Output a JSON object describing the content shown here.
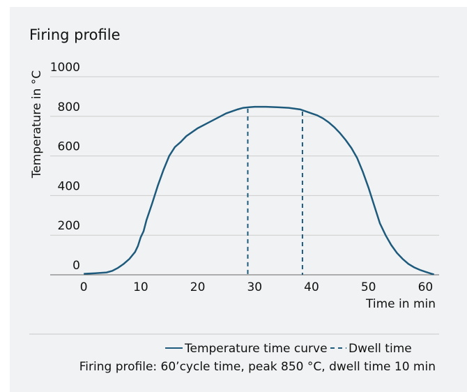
{
  "chart_data": {
    "type": "line",
    "title": "Firing profile",
    "x_label": "Time in min",
    "y_label": "Temperature in °C",
    "caption": "Firing profile: 60’cycle time, peak 850 °C, dwell time 10 min",
    "xlim": [
      -5.9,
      62.4
    ],
    "ylim": [
      0,
      1000
    ],
    "xticks": [
      0,
      10,
      20,
      30,
      40,
      50,
      60
    ],
    "yticks": [
      0,
      200,
      400,
      600,
      800,
      1000
    ],
    "grid": true,
    "series": [
      {
        "name": "Temperature time curve",
        "color": "#1d5a7c",
        "x": [
          0,
          2,
          4,
          5,
          6,
          7,
          8,
          9,
          9.5,
          10,
          10.5,
          11,
          12,
          13,
          14,
          15,
          16,
          17,
          18,
          20,
          22,
          24,
          25,
          26,
          27,
          28,
          29,
          30,
          32,
          34,
          36,
          38,
          40,
          41,
          42,
          43,
          44,
          45,
          46,
          47,
          48,
          49,
          50,
          51,
          52,
          53,
          54,
          55,
          56,
          57,
          58,
          59,
          60,
          61,
          61.5
        ],
        "values": [
          5,
          8,
          12,
          20,
          35,
          55,
          80,
          115,
          145,
          190,
          220,
          275,
          360,
          450,
          530,
          600,
          645,
          670,
          700,
          740,
          770,
          800,
          815,
          825,
          835,
          843,
          846,
          848,
          848,
          846,
          843,
          835,
          815,
          805,
          790,
          770,
          745,
          715,
          680,
          640,
          590,
          520,
          440,
          350,
          260,
          200,
          150,
          110,
          80,
          55,
          38,
          25,
          15,
          6,
          2
        ]
      },
      {
        "name": "Dwell time",
        "color": "#1d5a7c",
        "dashed": true,
        "x": [
          28.8,
          38.4
        ]
      }
    ]
  }
}
